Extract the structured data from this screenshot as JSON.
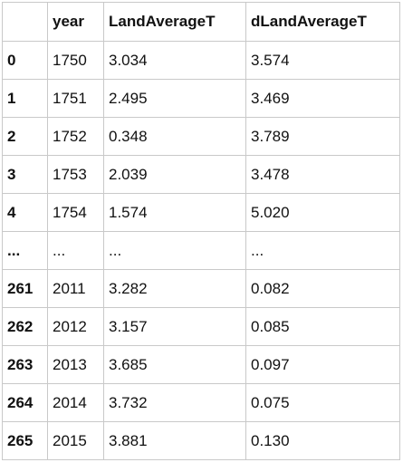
{
  "table": {
    "columns": [
      "",
      "year",
      "LandAverageT",
      "dLandAverageT"
    ],
    "rows": [
      [
        "0",
        "1750",
        "3.034",
        "3.574"
      ],
      [
        "1",
        "1751",
        "2.495",
        "3.469"
      ],
      [
        "2",
        "1752",
        "0.348",
        "3.789"
      ],
      [
        "3",
        "1753",
        "2.039",
        "3.478"
      ],
      [
        "4",
        "1754",
        "1.574",
        "5.020"
      ],
      [
        "...",
        "...",
        "...",
        "..."
      ],
      [
        "261",
        "2011",
        "3.282",
        "0.082"
      ],
      [
        "262",
        "2012",
        "3.157",
        "0.085"
      ],
      [
        "263",
        "2013",
        "3.685",
        "0.097"
      ],
      [
        "264",
        "2014",
        "3.732",
        "0.075"
      ],
      [
        "265",
        "2015",
        "3.881",
        "0.130"
      ]
    ]
  }
}
